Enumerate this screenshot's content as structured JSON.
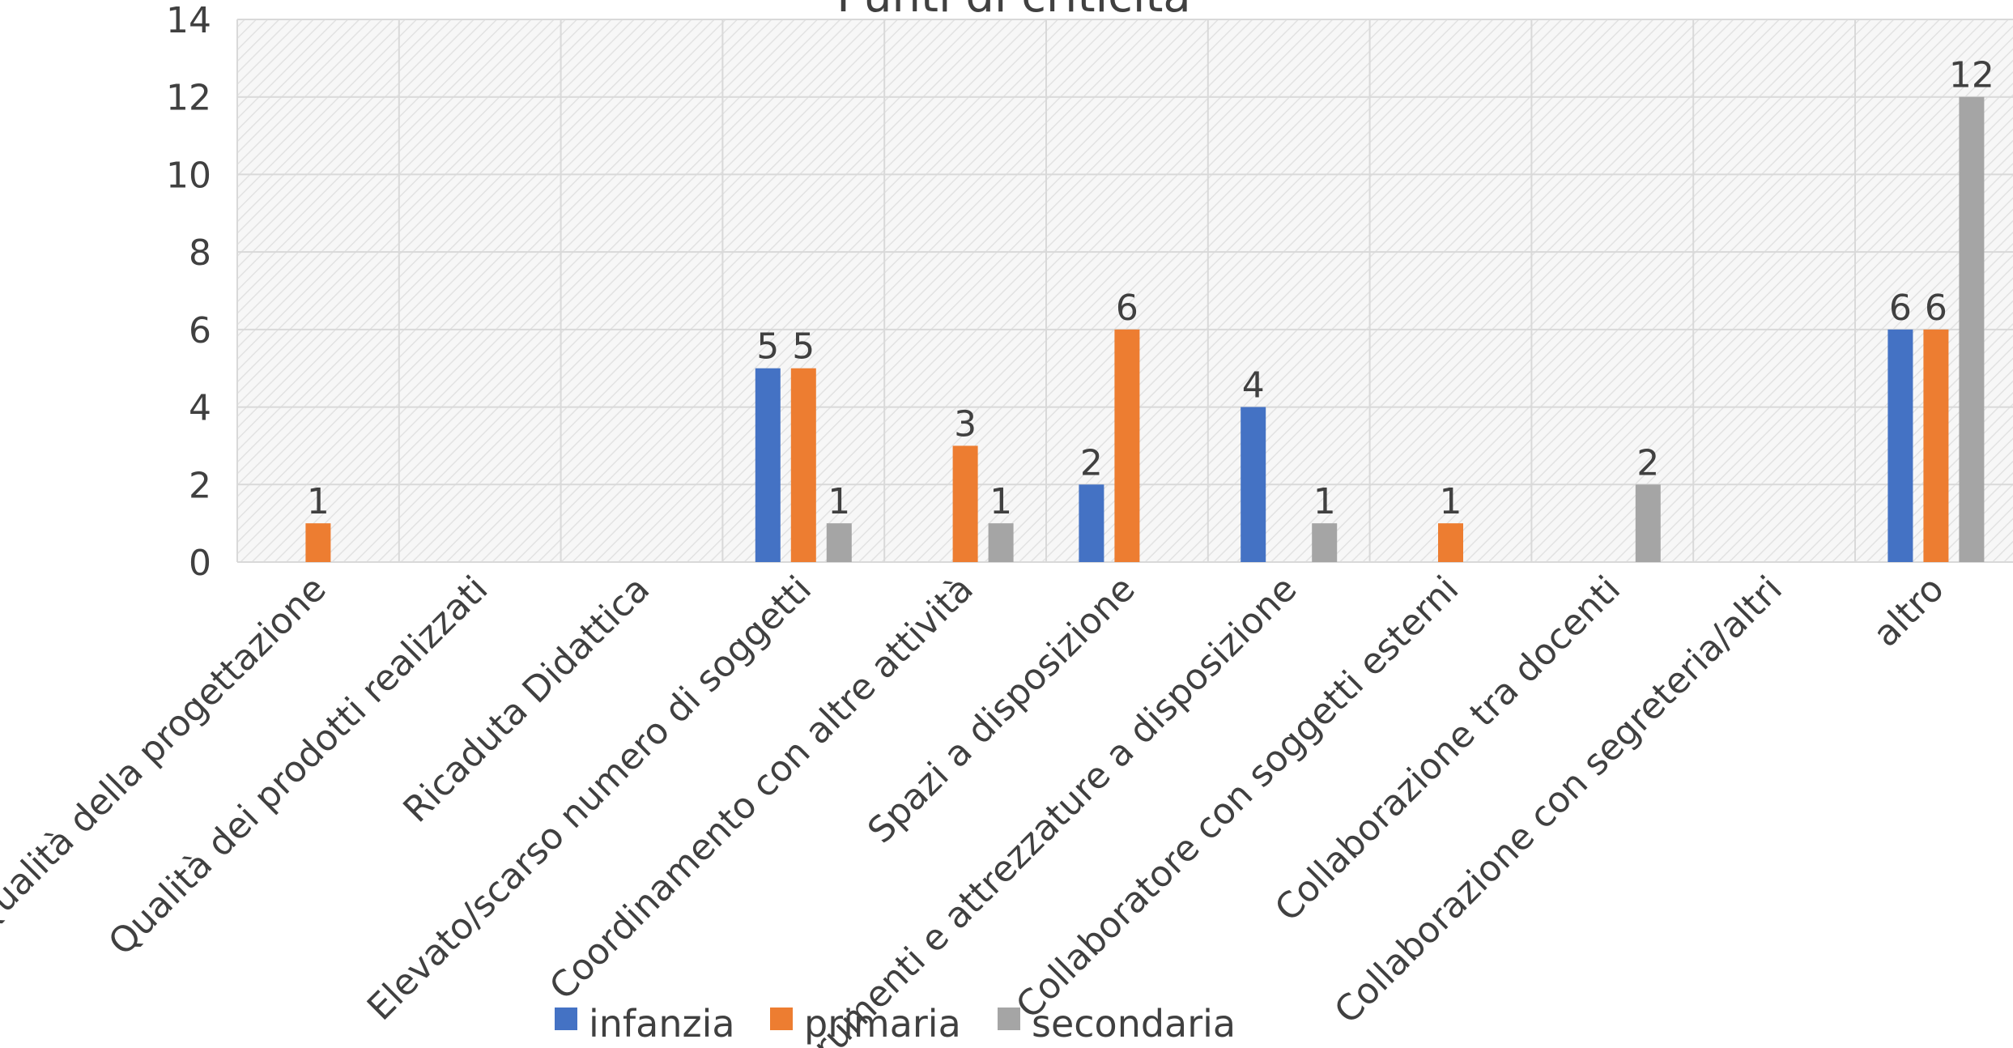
{
  "chart_data": {
    "type": "bar",
    "title": "Punti di criticità",
    "categories": [
      "Qualità della progettazione",
      "Qualità dei prodotti realizzati",
      "Ricaduta Didattica",
      "Elevato/scarso numero di soggetti",
      "Coordinamento con altre attività",
      "Spazi a disposizione",
      "Strumenti e attrezzature a disposizione",
      "Collaboratore con soggetti esterni",
      "Collaborazione tra docenti",
      "Collaborazione con segreteria/altri",
      "altro"
    ],
    "series": [
      {
        "name": "infanzia",
        "color": "#4472c4",
        "values": [
          null,
          null,
          null,
          5,
          null,
          2,
          4,
          null,
          null,
          null,
          6
        ]
      },
      {
        "name": "primaria",
        "color": "#ed7d31",
        "values": [
          1,
          null,
          null,
          5,
          3,
          6,
          null,
          1,
          null,
          null,
          6
        ]
      },
      {
        "name": "secondaria",
        "color": "#a5a5a5",
        "values": [
          null,
          null,
          null,
          1,
          1,
          null,
          1,
          null,
          2,
          null,
          12
        ]
      }
    ],
    "ylim": [
      0,
      14
    ],
    "yticks": [
      0,
      2,
      4,
      6,
      8,
      10,
      12,
      14
    ],
    "grid": true,
    "legend": "bottom"
  }
}
